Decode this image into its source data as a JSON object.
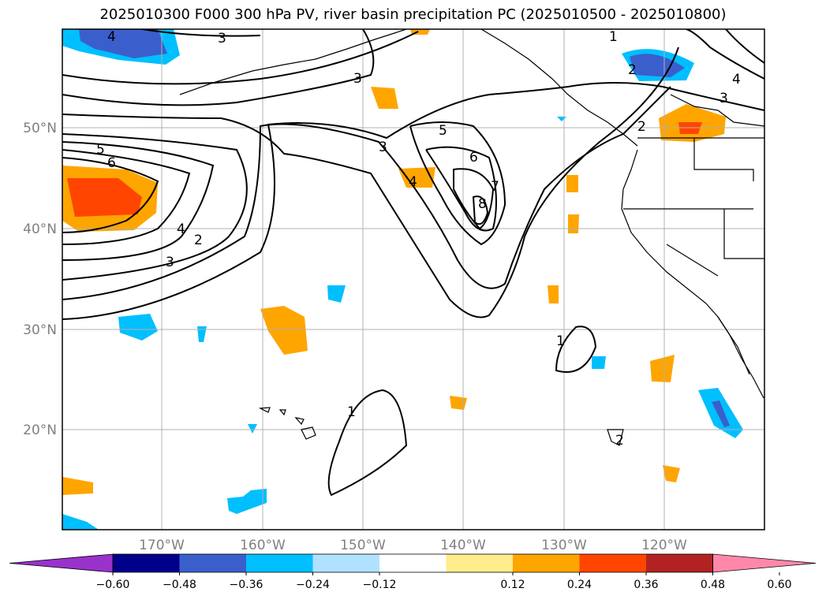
{
  "title": "2025010300 F000 300 hPa PV, river basin precipitation PC (2025010500 - 2025010800)",
  "lat_labels": [
    "50°N",
    "40°N",
    "30°N",
    "20°N"
  ],
  "lon_labels": [
    "170°W",
    "160°W",
    "150°W",
    "140°W",
    "130°W",
    "120°W"
  ],
  "colorbar": {
    "ticks": [
      "−0.60",
      "−0.48",
      "−0.36",
      "−0.24",
      "−0.12",
      "0.12",
      "0.24",
      "0.36",
      "0.48",
      "0.60"
    ],
    "colors": [
      "#9932CC",
      "#00008B",
      "#3A5FCD",
      "#00BFFF",
      "#B0E2FF",
      "#FFFFFF",
      "#FFEC8B",
      "#FFA500",
      "#FF4500",
      "#B22222",
      "#FF88AA"
    ]
  },
  "contour_labels": [
    "4",
    "3",
    "1",
    "3",
    "2",
    "4",
    "3",
    "5",
    "6",
    "3",
    "4",
    "2",
    "3",
    "5",
    "6",
    "7",
    "8",
    "4",
    "2",
    "1",
    "1",
    "2"
  ]
}
